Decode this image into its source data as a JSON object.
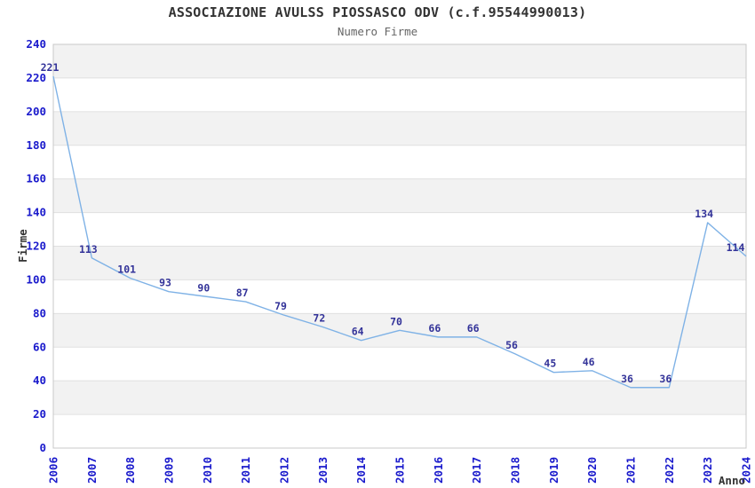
{
  "chart_data": {
    "type": "line",
    "title": "ASSOCIAZIONE AVULSS PIOSSASCO ODV (c.f.95544990013)",
    "subtitle": "Numero Firme",
    "xlabel": "Anno",
    "ylabel": "Firme",
    "categories": [
      "2006",
      "2007",
      "2008",
      "2009",
      "2010",
      "2011",
      "2012",
      "2013",
      "2014",
      "2015",
      "2016",
      "2017",
      "2018",
      "2019",
      "2020",
      "2021",
      "2022",
      "2023",
      "2024"
    ],
    "values": [
      221,
      113,
      101,
      93,
      90,
      87,
      79,
      72,
      64,
      70,
      66,
      66,
      56,
      45,
      46,
      36,
      36,
      134,
      114
    ],
    "ylim": [
      0,
      240
    ],
    "y_ticks": [
      0,
      20,
      40,
      60,
      80,
      100,
      120,
      140,
      160,
      180,
      200,
      220,
      240
    ],
    "grid": "horizontal-alternating-bands",
    "legend": "none",
    "x_tick_rotation": 90,
    "colors": {
      "line": "#7fb2e6",
      "point_label": "#333399",
      "axis_label": "#1a1acc",
      "band": "#f2f2f2",
      "gridline": "#e0e0e0",
      "border": "#c8c8c8",
      "title": "#333333",
      "subtitle": "#666666",
      "axis_title": "#333333",
      "background": "#ffffff"
    }
  }
}
